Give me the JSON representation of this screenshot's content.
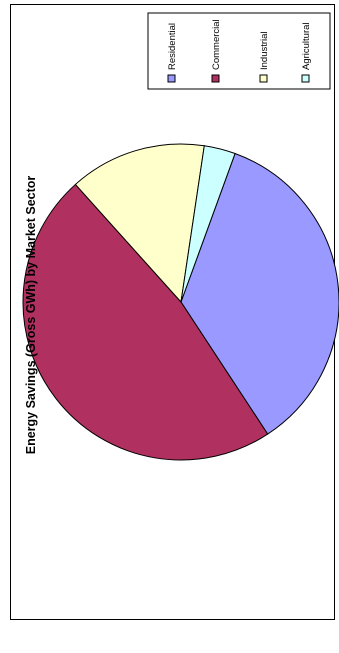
{
  "chart_data": {
    "type": "pie",
    "title": "Energy Savings (Gross GWh) by Market Sector",
    "orientation": "rotated 90° counter-clockwise",
    "legend_position": "top-right",
    "start_angle_deg": -70,
    "series": [
      {
        "name": "Residential",
        "value": 35.2,
        "color": "#9999ff"
      },
      {
        "name": "Commercial",
        "value": 47.6,
        "color": "#b03060"
      },
      {
        "name": "Industrial",
        "value": 14.0,
        "color": "#ffffcc"
      },
      {
        "name": "Agricultural",
        "value": 3.2,
        "color": "#ccffff"
      }
    ]
  }
}
